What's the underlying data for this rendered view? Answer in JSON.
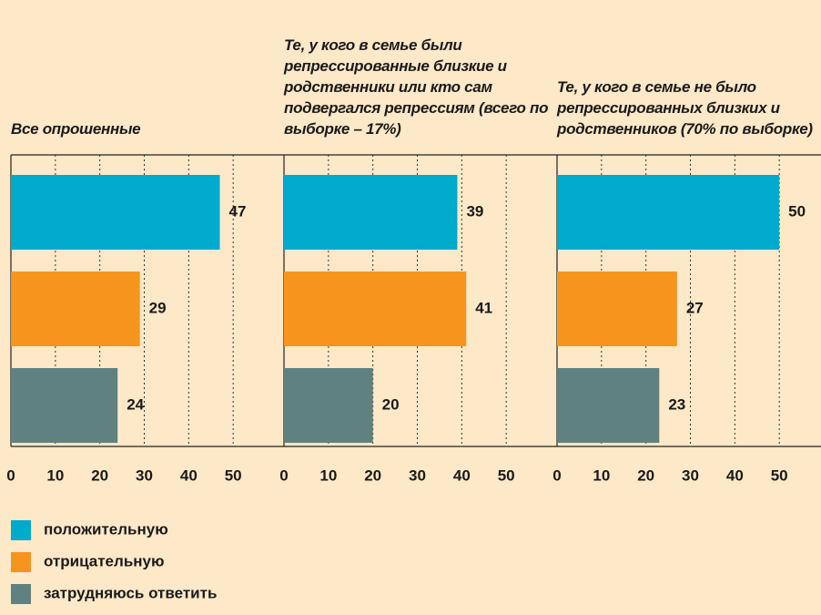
{
  "chart_data": {
    "type": "bar",
    "categories": [
      "Все опрошенные",
      "Те, у кого в семье были репрессированные близкие и родственники или кто сам подвергался репрессиям (всего по выборке – 17%)",
      "Те, у кого в семье не было репрессированных близких и родственников (70% по выборке)"
    ],
    "series": [
      {
        "name": "положительную",
        "color": "#00aacc",
        "values": [
          47,
          39,
          50
        ]
      },
      {
        "name": "отрицательную",
        "color": "#f7941d",
        "values": [
          29,
          41,
          27
        ]
      },
      {
        "name": "затрудняюсь ответить",
        "color": "#5f8181",
        "values": [
          24,
          20,
          23
        ]
      }
    ],
    "xlim": [
      0,
      60
    ],
    "xticks": [
      0,
      10,
      20,
      30,
      40,
      50
    ],
    "grid": true
  }
}
